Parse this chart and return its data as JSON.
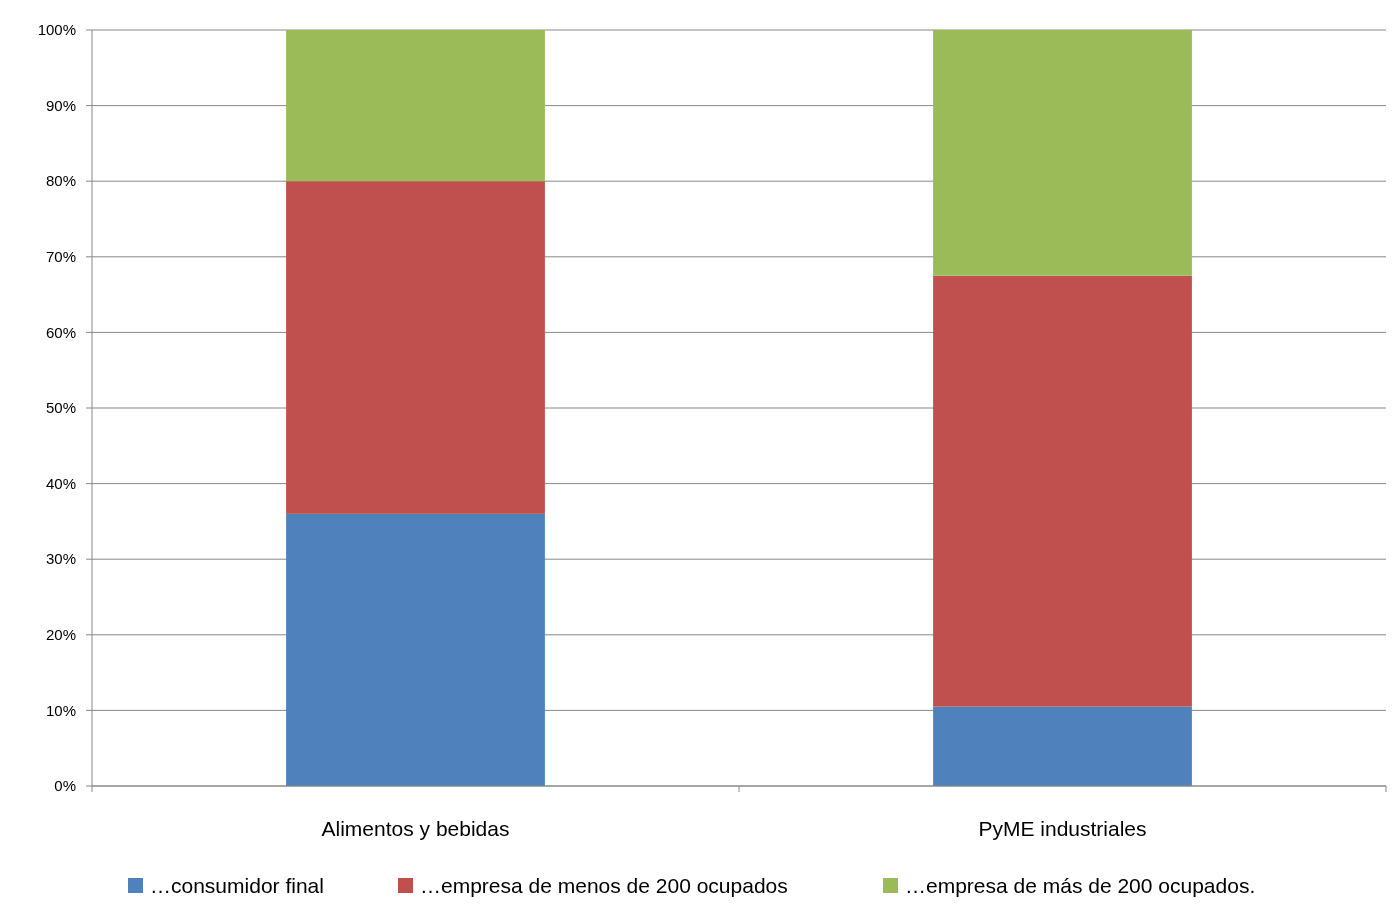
{
  "chart_data": {
    "type": "bar",
    "stacked": true,
    "categories": [
      "Alimentos y bebidas",
      "PyME industriales"
    ],
    "series": [
      {
        "name": "…consumidor final",
        "color": "#4f81bd",
        "values": [
          36,
          10.5
        ]
      },
      {
        "name": "…empresa de menos de 200 ocupados",
        "color": "#c0504d",
        "values": [
          44,
          57
        ]
      },
      {
        "name": "…empresa de más de 200 ocupados.",
        "color": "#9bbb59",
        "values": [
          20,
          32.5
        ]
      }
    ],
    "ylim": [
      0,
      100
    ],
    "yticks": [
      {
        "value": 0,
        "label": "0%"
      },
      {
        "value": 10,
        "label": "10%"
      },
      {
        "value": 20,
        "label": "20%"
      },
      {
        "value": 30,
        "label": "30%"
      },
      {
        "value": 40,
        "label": "40%"
      },
      {
        "value": 50,
        "label": "50%"
      },
      {
        "value": 60,
        "label": "60%"
      },
      {
        "value": 70,
        "label": "70%"
      },
      {
        "value": 80,
        "label": "80%"
      },
      {
        "value": 90,
        "label": "90%"
      },
      {
        "value": 100,
        "label": "100%"
      }
    ],
    "grid": "y",
    "legend": "bottom"
  }
}
